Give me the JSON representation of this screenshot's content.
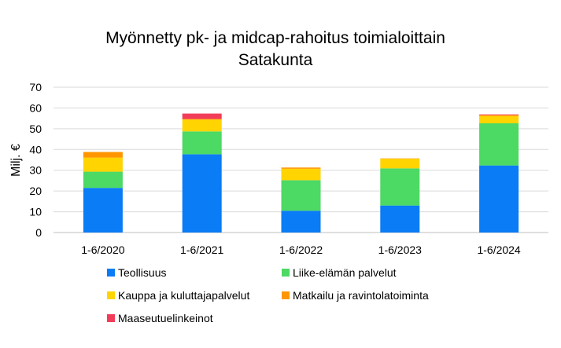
{
  "chart_data": {
    "type": "bar",
    "stacked": true,
    "title_line1": "Myönnetty pk- ja midcap-rahoitus toimialoittain",
    "title_line2": "Satakunta",
    "xlabel": "",
    "ylabel": "Milj. €",
    "ylim": [
      0,
      70
    ],
    "yticks": [
      "0",
      "10",
      "20",
      "30",
      "40",
      "50",
      "60",
      "70"
    ],
    "grid": true,
    "legend_position": "bottom",
    "categories": [
      "1-6/2020",
      "1-6/2021",
      "1-6/2022",
      "1-6/2023",
      "1-6/2024"
    ],
    "series": [
      {
        "name": "Teollisuus",
        "color": "#0a7cf5",
        "values": [
          21.5,
          37.7,
          10.5,
          13.0,
          32.3
        ]
      },
      {
        "name": "Liike-elämän palvelut",
        "color": "#4cd964",
        "values": [
          7.8,
          11.0,
          14.7,
          17.9,
          20.3
        ]
      },
      {
        "name": "Kauppa ja kuluttajapalvelut",
        "color": "#ffd400",
        "values": [
          6.8,
          5.7,
          5.5,
          4.6,
          3.5
        ]
      },
      {
        "name": "Matkailu ja ravintolatoiminta",
        "color": "#ff9500",
        "values": [
          2.7,
          0.3,
          0.6,
          0.2,
          0.5
        ]
      },
      {
        "name": "Maaseutuelinkeinot",
        "color": "#f23d5a",
        "values": [
          0.0,
          2.6,
          0.0,
          0.0,
          0.3
        ]
      }
    ]
  }
}
